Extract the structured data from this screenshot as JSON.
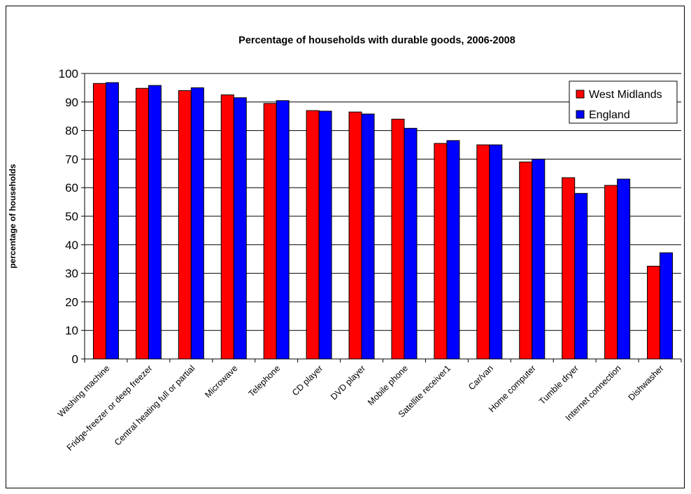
{
  "chart_data": {
    "type": "bar",
    "title": "Percentage of households with durable goods, 2006-2008",
    "xlabel": "",
    "ylabel": "percentage of households",
    "ylim": [
      0,
      100
    ],
    "ytick_step": 10,
    "grid": true,
    "legend_position": "top-right",
    "categories": [
      "Washing machine",
      "Fridge-freezer or deep freezer",
      "Central heating full or partial",
      "Microwave",
      "Telephone",
      "CD player",
      "DVD player",
      "Mobile phone",
      "Satellite receiver1",
      "Car/van",
      "Home computer",
      "Tumble dryer",
      "Internet connection",
      "Dishwasher"
    ],
    "series": [
      {
        "name": "West Midlands",
        "color": "#ff0000",
        "values": [
          96.5,
          94.8,
          94,
          92.5,
          89.5,
          87,
          86.5,
          84,
          75.5,
          75,
          69,
          63.5,
          60.8,
          32.5
        ]
      },
      {
        "name": "England",
        "color": "#0000ff",
        "values": [
          96.8,
          95.8,
          95,
          91.5,
          90.5,
          86.8,
          85.8,
          80.8,
          76.5,
          75,
          70,
          58,
          63,
          37.2
        ]
      }
    ]
  }
}
